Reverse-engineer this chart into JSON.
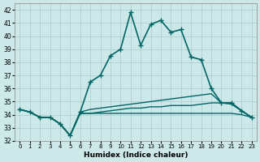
{
  "xlabel": "Humidex (Indice chaleur)",
  "ylabel": "",
  "xlim": [
    -0.5,
    23.5
  ],
  "ylim": [
    32,
    42.5
  ],
  "yticks": [
    32,
    33,
    34,
    35,
    36,
    37,
    38,
    39,
    40,
    41,
    42
  ],
  "xticks": [
    0,
    1,
    2,
    3,
    4,
    5,
    6,
    7,
    8,
    9,
    10,
    11,
    12,
    13,
    14,
    15,
    16,
    17,
    18,
    19,
    20,
    21,
    22,
    23
  ],
  "bg_color": "#cce8e8",
  "line_color": "#006666",
  "grid_color": "#aacccc",
  "lines": [
    {
      "x": [
        0,
        1,
        2,
        3,
        4,
        5,
        6,
        7,
        8,
        9,
        10,
        11,
        12,
        13,
        14,
        15,
        16,
        17,
        18,
        19,
        20,
        21,
        22,
        23
      ],
      "y": [
        34.4,
        34.2,
        33.8,
        33.8,
        33.3,
        32.4,
        34.2,
        36.5,
        37.0,
        38.5,
        39.0,
        41.8,
        39.3,
        40.9,
        41.2,
        40.3,
        40.5,
        38.4,
        38.2,
        36.0,
        34.9,
        34.9,
        34.3,
        33.8
      ],
      "marker": "+",
      "lw": 1.2
    },
    {
      "x": [
        0,
        1,
        2,
        3,
        4,
        5,
        6,
        7,
        8,
        9,
        10,
        11,
        12,
        13,
        14,
        15,
        16,
        17,
        18,
        19,
        20,
        21,
        22,
        23
      ],
      "y": [
        34.4,
        34.2,
        33.8,
        33.8,
        33.3,
        32.4,
        34.2,
        34.4,
        34.5,
        34.6,
        34.7,
        34.8,
        34.9,
        35.0,
        35.1,
        35.2,
        35.3,
        35.4,
        35.5,
        35.6,
        34.9,
        34.9,
        34.3,
        33.8
      ],
      "marker": null,
      "lw": 1.0
    },
    {
      "x": [
        0,
        1,
        2,
        3,
        4,
        5,
        6,
        7,
        8,
        9,
        10,
        11,
        12,
        13,
        14,
        15,
        16,
        17,
        18,
        19,
        20,
        21,
        22,
        23
      ],
      "y": [
        34.4,
        34.2,
        33.8,
        33.8,
        33.3,
        32.4,
        34.1,
        34.1,
        34.2,
        34.3,
        34.4,
        34.5,
        34.5,
        34.6,
        34.6,
        34.7,
        34.7,
        34.7,
        34.8,
        34.9,
        34.9,
        34.8,
        34.3,
        33.8
      ],
      "marker": null,
      "lw": 1.0
    },
    {
      "x": [
        0,
        1,
        2,
        3,
        4,
        5,
        6,
        7,
        8,
        9,
        10,
        11,
        12,
        13,
        14,
        15,
        16,
        17,
        18,
        19,
        20,
        21,
        22,
        23
      ],
      "y": [
        34.4,
        34.2,
        33.8,
        33.8,
        33.3,
        32.4,
        34.1,
        34.1,
        34.1,
        34.1,
        34.1,
        34.1,
        34.1,
        34.1,
        34.1,
        34.1,
        34.1,
        34.1,
        34.1,
        34.1,
        34.1,
        34.1,
        34.0,
        33.8
      ],
      "marker": null,
      "lw": 1.0
    }
  ]
}
